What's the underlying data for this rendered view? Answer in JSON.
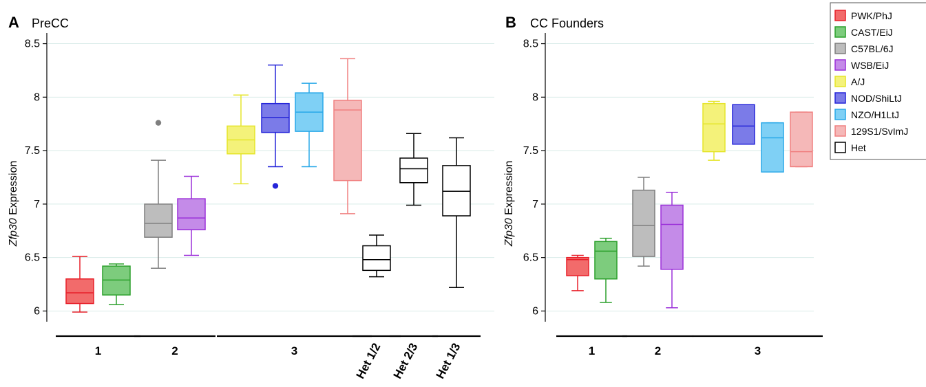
{
  "chart_data": [
    {
      "type": "box",
      "panel_letter": "A",
      "title": "PreCC",
      "ylabel_italic": "Zfp30",
      "ylabel_rest": " Expression",
      "ylim": [
        5.9,
        8.6
      ],
      "yticks": [
        6,
        6.5,
        7,
        7.5,
        8,
        8.5
      ],
      "ytick_labels": [
        "6",
        "6.5",
        "7",
        "7.5",
        "8",
        "8.5"
      ],
      "grid": true,
      "boxes": [
        {
          "strain": "PWK/PhJ",
          "min": 5.99,
          "q1": 6.07,
          "median": 6.17,
          "q3": 6.3,
          "max": 6.51,
          "outliers": []
        },
        {
          "strain": "CAST/EiJ",
          "min": 6.06,
          "q1": 6.15,
          "median": 6.29,
          "q3": 6.42,
          "max": 6.44,
          "outliers": []
        },
        {
          "strain": "C57BL/6J",
          "min": 6.4,
          "q1": 6.69,
          "median": 6.82,
          "q3": 7.0,
          "max": 7.41,
          "outliers": [
            7.76
          ]
        },
        {
          "strain": "WSB/EiJ",
          "min": 6.52,
          "q1": 6.76,
          "median": 6.87,
          "q3": 7.05,
          "max": 7.26,
          "outliers": []
        },
        {
          "strain": "A/J",
          "min": 7.19,
          "q1": 7.47,
          "median": 7.6,
          "q3": 7.73,
          "max": 8.02,
          "outliers": []
        },
        {
          "strain": "NOD/ShiLtJ",
          "min": 7.35,
          "q1": 7.67,
          "median": 7.81,
          "q3": 7.94,
          "max": 8.3,
          "outliers": [
            7.17
          ]
        },
        {
          "strain": "NZO/H1LtJ",
          "min": 7.35,
          "q1": 7.68,
          "median": 7.86,
          "q3": 8.04,
          "max": 8.13,
          "outliers": []
        },
        {
          "strain": "129S1/SvImJ",
          "min": 6.91,
          "q1": 7.22,
          "median": 7.88,
          "q3": 7.97,
          "max": 8.36,
          "outliers": []
        },
        {
          "strain": "Het",
          "min": 6.32,
          "q1": 6.38,
          "median": 6.48,
          "q3": 6.61,
          "max": 6.71,
          "outliers": []
        },
        {
          "strain": "Het",
          "min": 6.99,
          "q1": 7.2,
          "median": 7.33,
          "q3": 7.43,
          "max": 7.66,
          "outliers": []
        },
        {
          "strain": "Het",
          "min": 6.22,
          "q1": 6.89,
          "median": 7.12,
          "q3": 7.36,
          "max": 7.62,
          "outliers": []
        }
      ],
      "groups": [
        {
          "label": "1",
          "first": 0,
          "last": 1,
          "rotated": false
        },
        {
          "label": "2",
          "first": 2,
          "last": 3,
          "rotated": false
        },
        {
          "label": "3",
          "first": 4,
          "last": 7,
          "rotated": false
        },
        {
          "label": "Het 1/2",
          "first": 8,
          "last": 8,
          "rotated": true
        },
        {
          "label": "Het 2/3",
          "first": 9,
          "last": 9,
          "rotated": true
        },
        {
          "label": "Het 1/3",
          "first": 10,
          "last": 10,
          "rotated": true
        }
      ]
    },
    {
      "type": "box",
      "panel_letter": "B",
      "title": "CC Founders",
      "ylabel_italic": "Zfp30",
      "ylabel_rest": " Expression",
      "ylim": [
        5.9,
        8.6
      ],
      "yticks": [
        6,
        6.5,
        7,
        7.5,
        8,
        8.5
      ],
      "ytick_labels": [
        "6",
        "6.5",
        "7",
        "7.5",
        "8",
        "8.5"
      ],
      "grid": true,
      "boxes": [
        {
          "strain": "PWK/PhJ",
          "min": 6.19,
          "q1": 6.33,
          "median": 6.48,
          "q3": 6.5,
          "max": 6.52,
          "outliers": []
        },
        {
          "strain": "CAST/EiJ",
          "min": 6.08,
          "q1": 6.3,
          "median": 6.56,
          "q3": 6.65,
          "max": 6.68,
          "outliers": []
        },
        {
          "strain": "C57BL/6J",
          "min": 6.42,
          "q1": 6.51,
          "median": 6.8,
          "q3": 7.13,
          "max": 7.25,
          "outliers": []
        },
        {
          "strain": "WSB/EiJ",
          "min": 6.03,
          "q1": 6.39,
          "median": 6.81,
          "q3": 6.99,
          "max": 7.11,
          "outliers": []
        },
        {
          "strain": "A/J",
          "min": 7.41,
          "q1": 7.49,
          "median": 7.75,
          "q3": 7.94,
          "max": 7.96,
          "outliers": []
        },
        {
          "strain": "NOD/ShiLtJ",
          "min": 7.56,
          "q1": 7.56,
          "median": 7.73,
          "q3": 7.93,
          "max": 7.93,
          "outliers": []
        },
        {
          "strain": "NZO/H1LtJ",
          "min": 7.3,
          "q1": 7.3,
          "median": 7.62,
          "q3": 7.76,
          "max": 7.76,
          "outliers": []
        },
        {
          "strain": "129S1/SvImJ",
          "min": 7.35,
          "q1": 7.35,
          "median": 7.49,
          "q3": 7.86,
          "max": 7.86,
          "outliers": []
        }
      ],
      "groups": [
        {
          "label": "1",
          "first": 0,
          "last": 1,
          "rotated": false
        },
        {
          "label": "2",
          "first": 2,
          "last": 3,
          "rotated": false
        },
        {
          "label": "3",
          "first": 4,
          "last": 7,
          "rotated": false
        }
      ]
    }
  ],
  "legend": {
    "placement": "top-right",
    "items": [
      {
        "label": "PWK/PhJ",
        "fill": "#f26b6b",
        "stroke": "#e8202a"
      },
      {
        "label": "CAST/EiJ",
        "fill": "#7dcc7d",
        "stroke": "#2ca02c"
      },
      {
        "label": "C57BL/6J",
        "fill": "#bdbdbd",
        "stroke": "#7f7f7f"
      },
      {
        "label": "WSB/EiJ",
        "fill": "#c48be8",
        "stroke": "#9b30d9"
      },
      {
        "label": "A/J",
        "fill": "#f4f27a",
        "stroke": "#e5e52a"
      },
      {
        "label": "NOD/ShiLtJ",
        "fill": "#7b7be8",
        "stroke": "#2525d9"
      },
      {
        "label": "NZO/H1LtJ",
        "fill": "#7fd0f5",
        "stroke": "#28a8e8"
      },
      {
        "label": "129S1/SvImJ",
        "fill": "#f5b8b8",
        "stroke": "#f08080"
      },
      {
        "label": "Het",
        "fill": "#ffffff",
        "stroke": "#000000"
      }
    ]
  }
}
